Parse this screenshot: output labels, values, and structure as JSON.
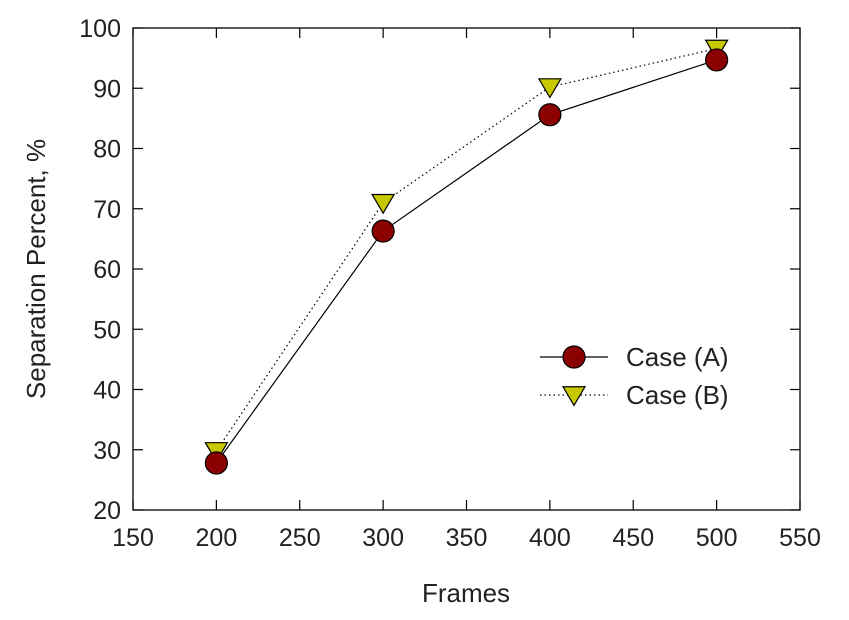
{
  "chart_data": {
    "type": "line",
    "xlabel": "Frames",
    "ylabel": "Separation Percent, %",
    "xlim": [
      150,
      550
    ],
    "ylim": [
      20,
      100
    ],
    "xticks": [
      150,
      200,
      250,
      300,
      350,
      400,
      450,
      500,
      550
    ],
    "yticks": [
      20,
      30,
      40,
      50,
      60,
      70,
      80,
      90,
      100
    ],
    "grid": false,
    "legend_position": "center-right",
    "x": [
      200,
      300,
      400,
      500
    ],
    "series": [
      {
        "name": "Case (A)",
        "values": [
          27.8,
          66.3,
          85.6,
          94.7
        ],
        "marker": "circle",
        "line_style": "solid",
        "color": "#8b0000"
      },
      {
        "name": "Case (B)",
        "values": [
          29.8,
          71.0,
          90.2,
          96.6
        ],
        "marker": "triangle-down",
        "line_style": "dotted",
        "color": "#c8c800"
      }
    ]
  }
}
